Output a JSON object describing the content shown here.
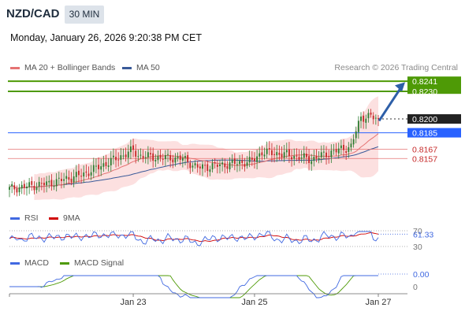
{
  "header": {
    "symbol": "NZD/CAD",
    "timeframe": "30 MIN",
    "datetime": "Monday, January 26, 2026 9:20:38 PM CET"
  },
  "legend": {
    "ma20_label": "MA 20 + Bollinger Bands",
    "ma50_label": "MA 50",
    "credit": "Research © 2026 Trading Central"
  },
  "colors": {
    "price_up": "#2e7d32",
    "price_down": "#c62828",
    "ma20": "#e57373",
    "ma50": "#3a5a99",
    "bands_fill": "#fbdada",
    "target": "#4e9a06",
    "support": "#2962ff",
    "resistance_red": "#e57373",
    "rsi": "#4169e1",
    "rsi_ma": "#d00000",
    "macd": "#4169e1",
    "macd_signal": "#4e9a06",
    "arrow": "#2e5fa8"
  },
  "chart_data": [
    {
      "type": "candlestick",
      "panel": "price",
      "x_labels": [
        "Jan 23",
        "Jan 25",
        "Jan 27"
      ],
      "ylim": [
        0.8105,
        0.8248
      ],
      "levels": [
        {
          "value": 0.8241,
          "label": "0.8241",
          "kind": "target"
        },
        {
          "value": 0.823,
          "label": "0.8230",
          "kind": "target"
        },
        {
          "value": 0.82,
          "label": "0.8200",
          "kind": "current"
        },
        {
          "value": 0.8185,
          "label": "0.8185",
          "kind": "pivot"
        },
        {
          "value": 0.8167,
          "label": "0.8167",
          "kind": "resistance"
        },
        {
          "value": 0.8157,
          "label": "0.8157",
          "kind": "resistance"
        }
      ],
      "series": [
        {
          "name": "MA 20 + Bollinger Bands"
        },
        {
          "name": "MA 50"
        }
      ]
    },
    {
      "type": "line",
      "panel": "rsi",
      "series": [
        {
          "name": "RSI"
        },
        {
          "name": "9MA"
        }
      ],
      "current_value": "61.33",
      "tick_labels": [
        "70",
        "30"
      ],
      "ylim": [
        20,
        80
      ]
    },
    {
      "type": "line",
      "panel": "macd",
      "series": [
        {
          "name": "MACD"
        },
        {
          "name": "MACD Signal"
        }
      ],
      "current_value": "0.00",
      "tick_labels": [
        "0"
      ]
    }
  ],
  "panels": {
    "rsi": {
      "label": "RSI",
      "ma_label": "9MA"
    },
    "macd": {
      "label": "MACD",
      "signal_label": "MACD Signal"
    }
  }
}
